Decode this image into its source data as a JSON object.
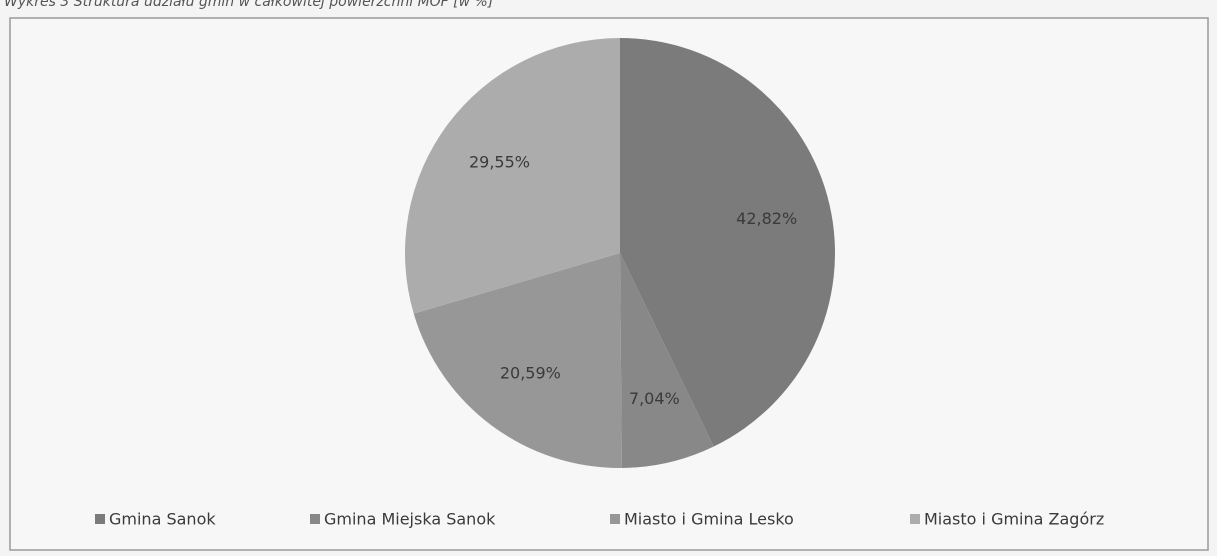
{
  "chart_data": {
    "type": "pie",
    "title": "Wykres 3 Struktura udziału gmin w całkowitej powierzchni MOF [w %]",
    "categories": [
      "Gmina Sanok",
      "Gmina Miejska Sanok",
      "Miasto i Gmina Lesko",
      "Miasto i Gmina Zagórz"
    ],
    "values": [
      42.82,
      7.04,
      20.59,
      29.55
    ],
    "value_labels": [
      "42,82%",
      "7,04%",
      "20,59%",
      "29,55%"
    ],
    "colors": [
      "#7b7b7b",
      "#888888",
      "#979797",
      "#acacac"
    ],
    "legend": "bottom"
  }
}
